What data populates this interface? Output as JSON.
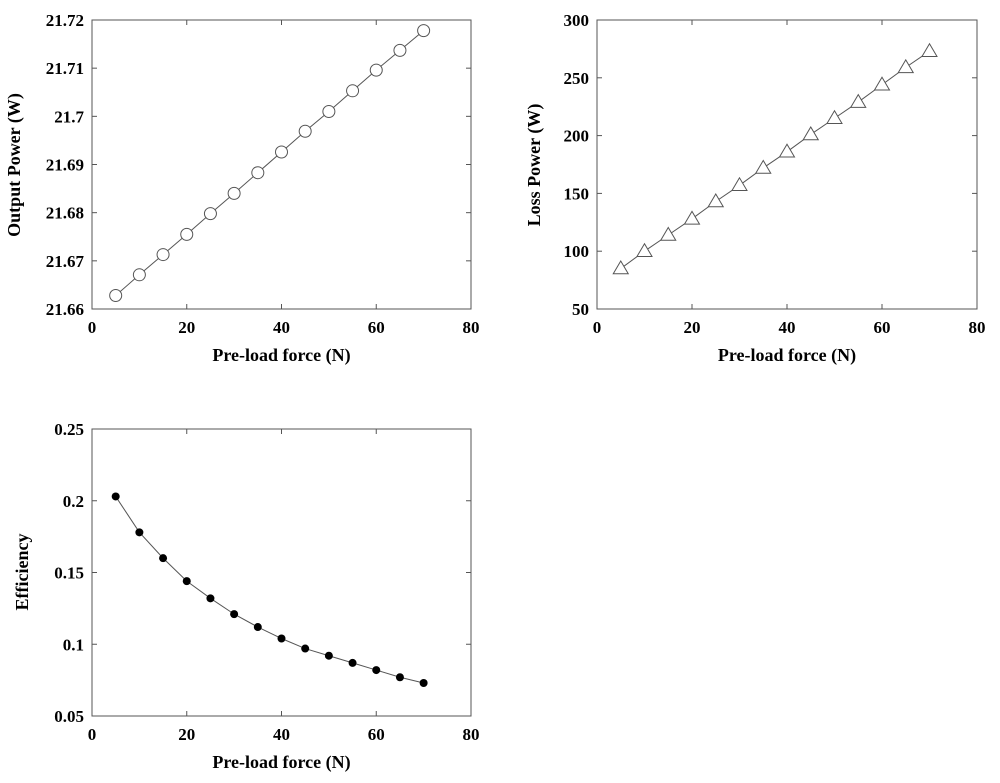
{
  "chart_data": [
    {
      "id": "output-power",
      "type": "line",
      "marker": "open-circle",
      "title": "",
      "xlabel": "Pre-load force (N)",
      "ylabel": "Output Power (W)",
      "xlim": [
        0,
        80
      ],
      "ylim": [
        21.66,
        21.72
      ],
      "xticks": [
        "0",
        "20",
        "40",
        "60",
        "80"
      ],
      "yticks": [
        "21.66",
        "21.67",
        "21.68",
        "21.69",
        "21.7",
        "21.71",
        "21.72"
      ],
      "x": [
        5,
        10,
        15,
        20,
        25,
        30,
        35,
        40,
        45,
        50,
        55,
        60,
        65,
        70
      ],
      "y": [
        21.6628,
        21.6671,
        21.6713,
        21.6755,
        21.6798,
        21.684,
        21.6883,
        21.6926,
        21.6969,
        21.701,
        21.7053,
        21.7096,
        21.7137,
        21.7178
      ]
    },
    {
      "id": "loss-power",
      "type": "line",
      "marker": "open-triangle",
      "title": "",
      "xlabel": "Pre-load force (N)",
      "ylabel": "Loss Power (W)",
      "xlim": [
        0,
        80
      ],
      "ylim": [
        50,
        300
      ],
      "xticks": [
        "0",
        "20",
        "40",
        "60",
        "80"
      ],
      "yticks": [
        "50",
        "100",
        "150",
        "200",
        "250",
        "300"
      ],
      "x": [
        5,
        10,
        15,
        20,
        25,
        30,
        35,
        40,
        45,
        50,
        55,
        60,
        65,
        70
      ],
      "y": [
        85,
        100,
        114,
        128,
        143,
        157,
        172,
        186,
        201,
        215,
        229,
        244,
        259,
        273
      ]
    },
    {
      "id": "efficiency",
      "type": "line",
      "marker": "filled-circle",
      "title": "",
      "xlabel": "Pre-load force (N)",
      "ylabel": "Efficiency",
      "xlim": [
        0,
        80
      ],
      "ylim": [
        0.05,
        0.25
      ],
      "xticks": [
        "0",
        "20",
        "40",
        "60",
        "80"
      ],
      "yticks": [
        "0.05",
        "0.1",
        "0.15",
        "0.2",
        "0.25"
      ],
      "x": [
        5,
        10,
        15,
        20,
        25,
        30,
        35,
        40,
        45,
        50,
        55,
        60,
        65,
        70
      ],
      "y": [
        0.203,
        0.178,
        0.16,
        0.144,
        0.132,
        0.121,
        0.112,
        0.104,
        0.097,
        0.092,
        0.087,
        0.082,
        0.077,
        0.073
      ]
    }
  ]
}
